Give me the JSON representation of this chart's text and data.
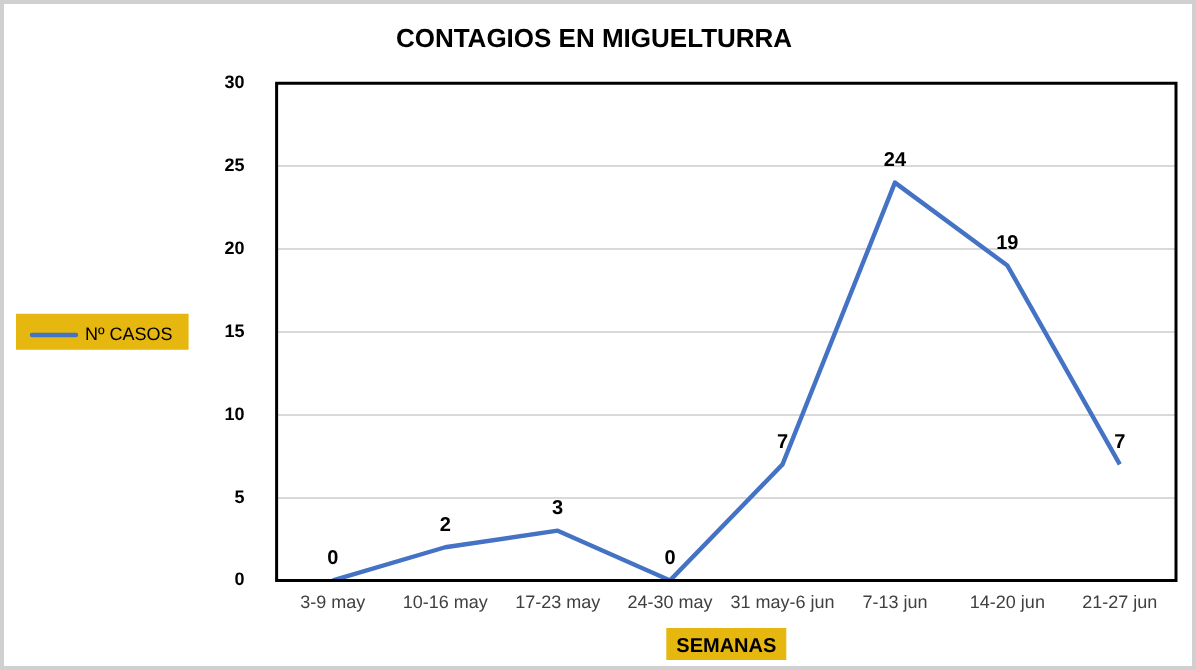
{
  "chart_data": {
    "type": "line",
    "title": "CONTAGIOS EN MIGUELTURRA",
    "xlabel": "SEMANAS",
    "categories": [
      "3-9 may",
      "10-16 may",
      "17-23 may",
      "24-30 may",
      "31 may-6 jun",
      "7-13 jun",
      "14-20 jun",
      "21-27 jun"
    ],
    "series": [
      {
        "name": "Nº CASOS",
        "color": "#4472c4",
        "values": [
          0,
          2,
          3,
          0,
          7,
          24,
          19,
          7
        ]
      }
    ],
    "ylim": [
      0,
      30
    ],
    "yticks": [
      0,
      5,
      10,
      15,
      20,
      25,
      30
    ],
    "grid": "y",
    "legend": "left",
    "marker": "none",
    "line_style": "solid",
    "data_labels": true
  }
}
